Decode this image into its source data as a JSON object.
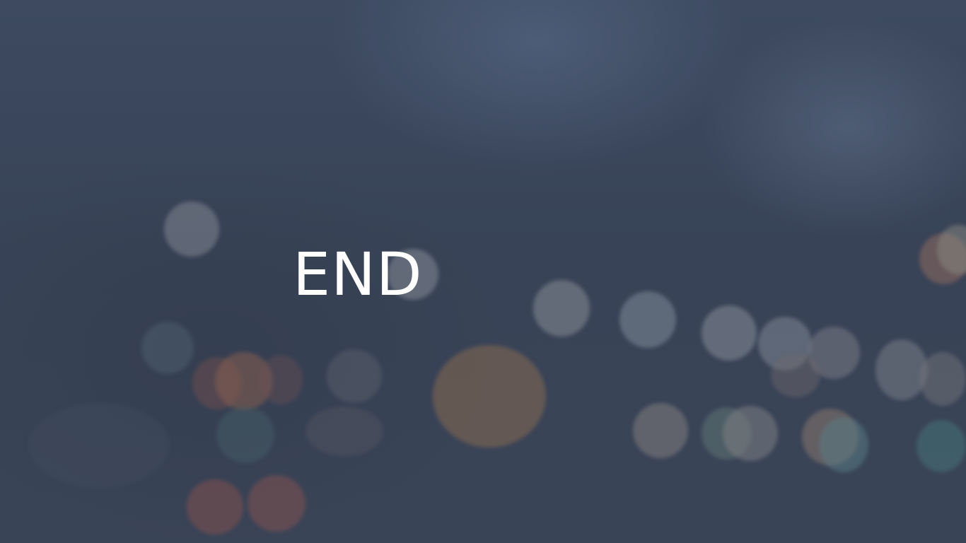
{
  "slide": {
    "title": "END"
  },
  "colors": {
    "background": "#3a4558",
    "title_text": "#ffffff"
  }
}
